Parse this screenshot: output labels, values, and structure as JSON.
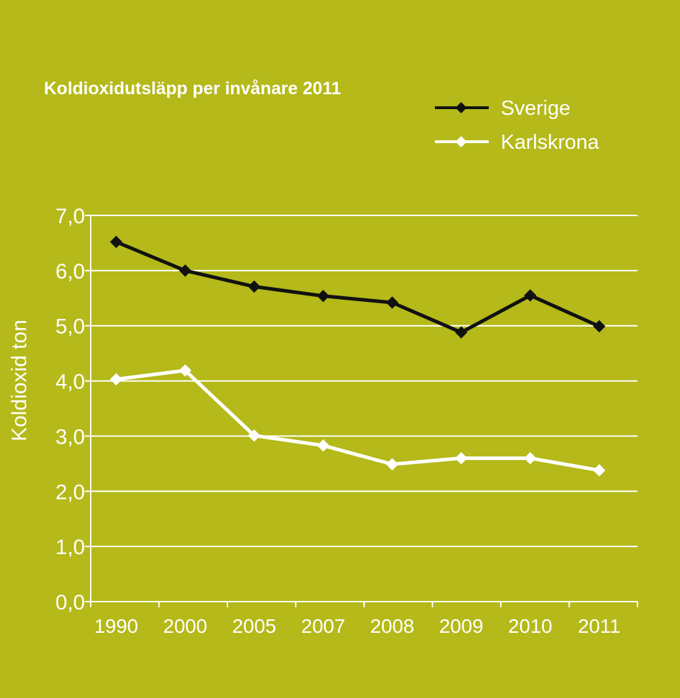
{
  "chart_data": {
    "type": "line",
    "title": "Koldioxidutsläpp per invånare 2011",
    "ylabel": "Koldioxid ton",
    "xlabel": "",
    "categories": [
      "1990",
      "2000",
      "2005",
      "2007",
      "2008",
      "2009",
      "2010",
      "2011"
    ],
    "ylim": [
      0,
      7
    ],
    "yticks": [
      "0,0",
      "1,0",
      "2,0",
      "3,0",
      "4,0",
      "5,0",
      "6,0",
      "7,0"
    ],
    "grid": true,
    "legend_position": "top-right",
    "series": [
      {
        "name": "Sverige",
        "color": "#111111",
        "values": [
          6.52,
          6.0,
          5.71,
          5.54,
          5.42,
          4.88,
          5.55,
          4.99
        ]
      },
      {
        "name": "Karlskrona",
        "color": "#ffffff",
        "values": [
          4.03,
          4.19,
          3.01,
          2.83,
          2.49,
          2.6,
          2.6,
          2.38
        ]
      }
    ]
  },
  "colors": {
    "background": "#b5b919",
    "grid": "#ffffff",
    "axis": "#ffffff"
  }
}
